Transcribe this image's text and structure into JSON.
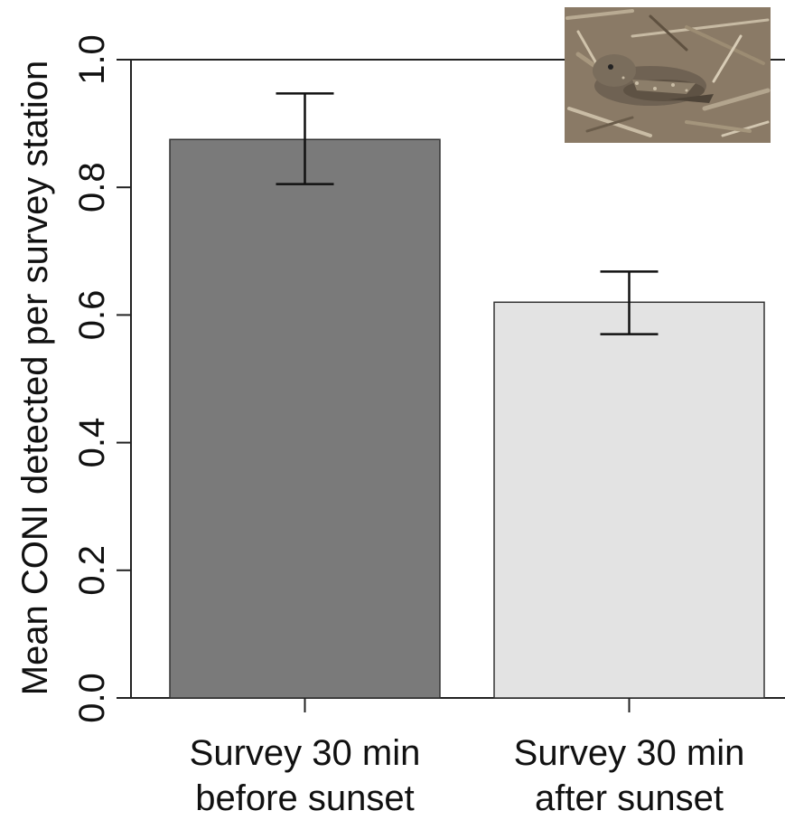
{
  "chart_data": {
    "type": "bar",
    "categories": [
      "Survey 30 min before sunset",
      "Survey 30 min after sunset"
    ],
    "category_lines": [
      [
        "Survey 30 min",
        "before sunset"
      ],
      [
        "Survey 30 min",
        "after sunset"
      ]
    ],
    "values": [
      0.875,
      0.62
    ],
    "error_low": [
      0.805,
      0.57
    ],
    "error_high": [
      0.947,
      0.668
    ],
    "bar_colors": [
      "#7a7a7a",
      "#e3e3e3"
    ],
    "ylabel": "Mean CONI detected per survey station",
    "xlabel": "",
    "ylim": [
      0,
      1.0
    ],
    "yticks": [
      0.0,
      0.2,
      0.4,
      0.6,
      0.8,
      1.0
    ],
    "ytick_labels": [
      "0.0",
      "0.2",
      "0.4",
      "0.6",
      "0.8",
      "1.0"
    ],
    "grid": false,
    "legend": "none"
  },
  "inset_photo": {
    "subject": "common-nighthawk-on-ground",
    "colors": {
      "ground": "#8a7a66",
      "bird": "#6f6253",
      "litter": "#b9ab93"
    }
  }
}
